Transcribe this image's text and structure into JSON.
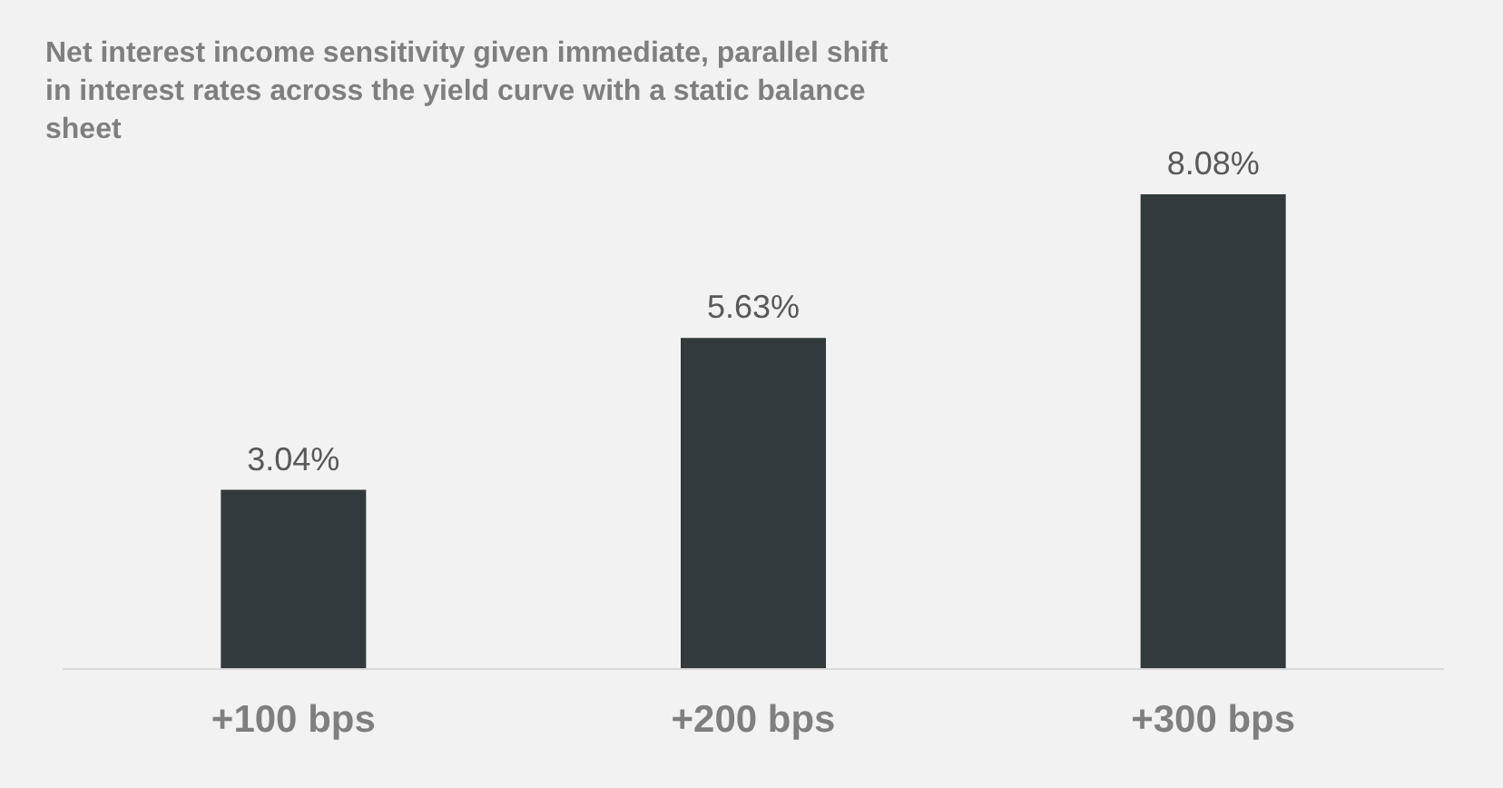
{
  "chart_data": {
    "type": "bar",
    "title": "Net interest income sensitivity given immediate, parallel shift in interest rates across the yield curve with a static balance sheet",
    "categories": [
      "+100 bps",
      "+200 bps",
      "+300 bps"
    ],
    "values": [
      3.04,
      5.63,
      8.08
    ],
    "value_labels": [
      "3.04%",
      "5.63%",
      "8.08%"
    ],
    "color": "#333a3d"
  }
}
